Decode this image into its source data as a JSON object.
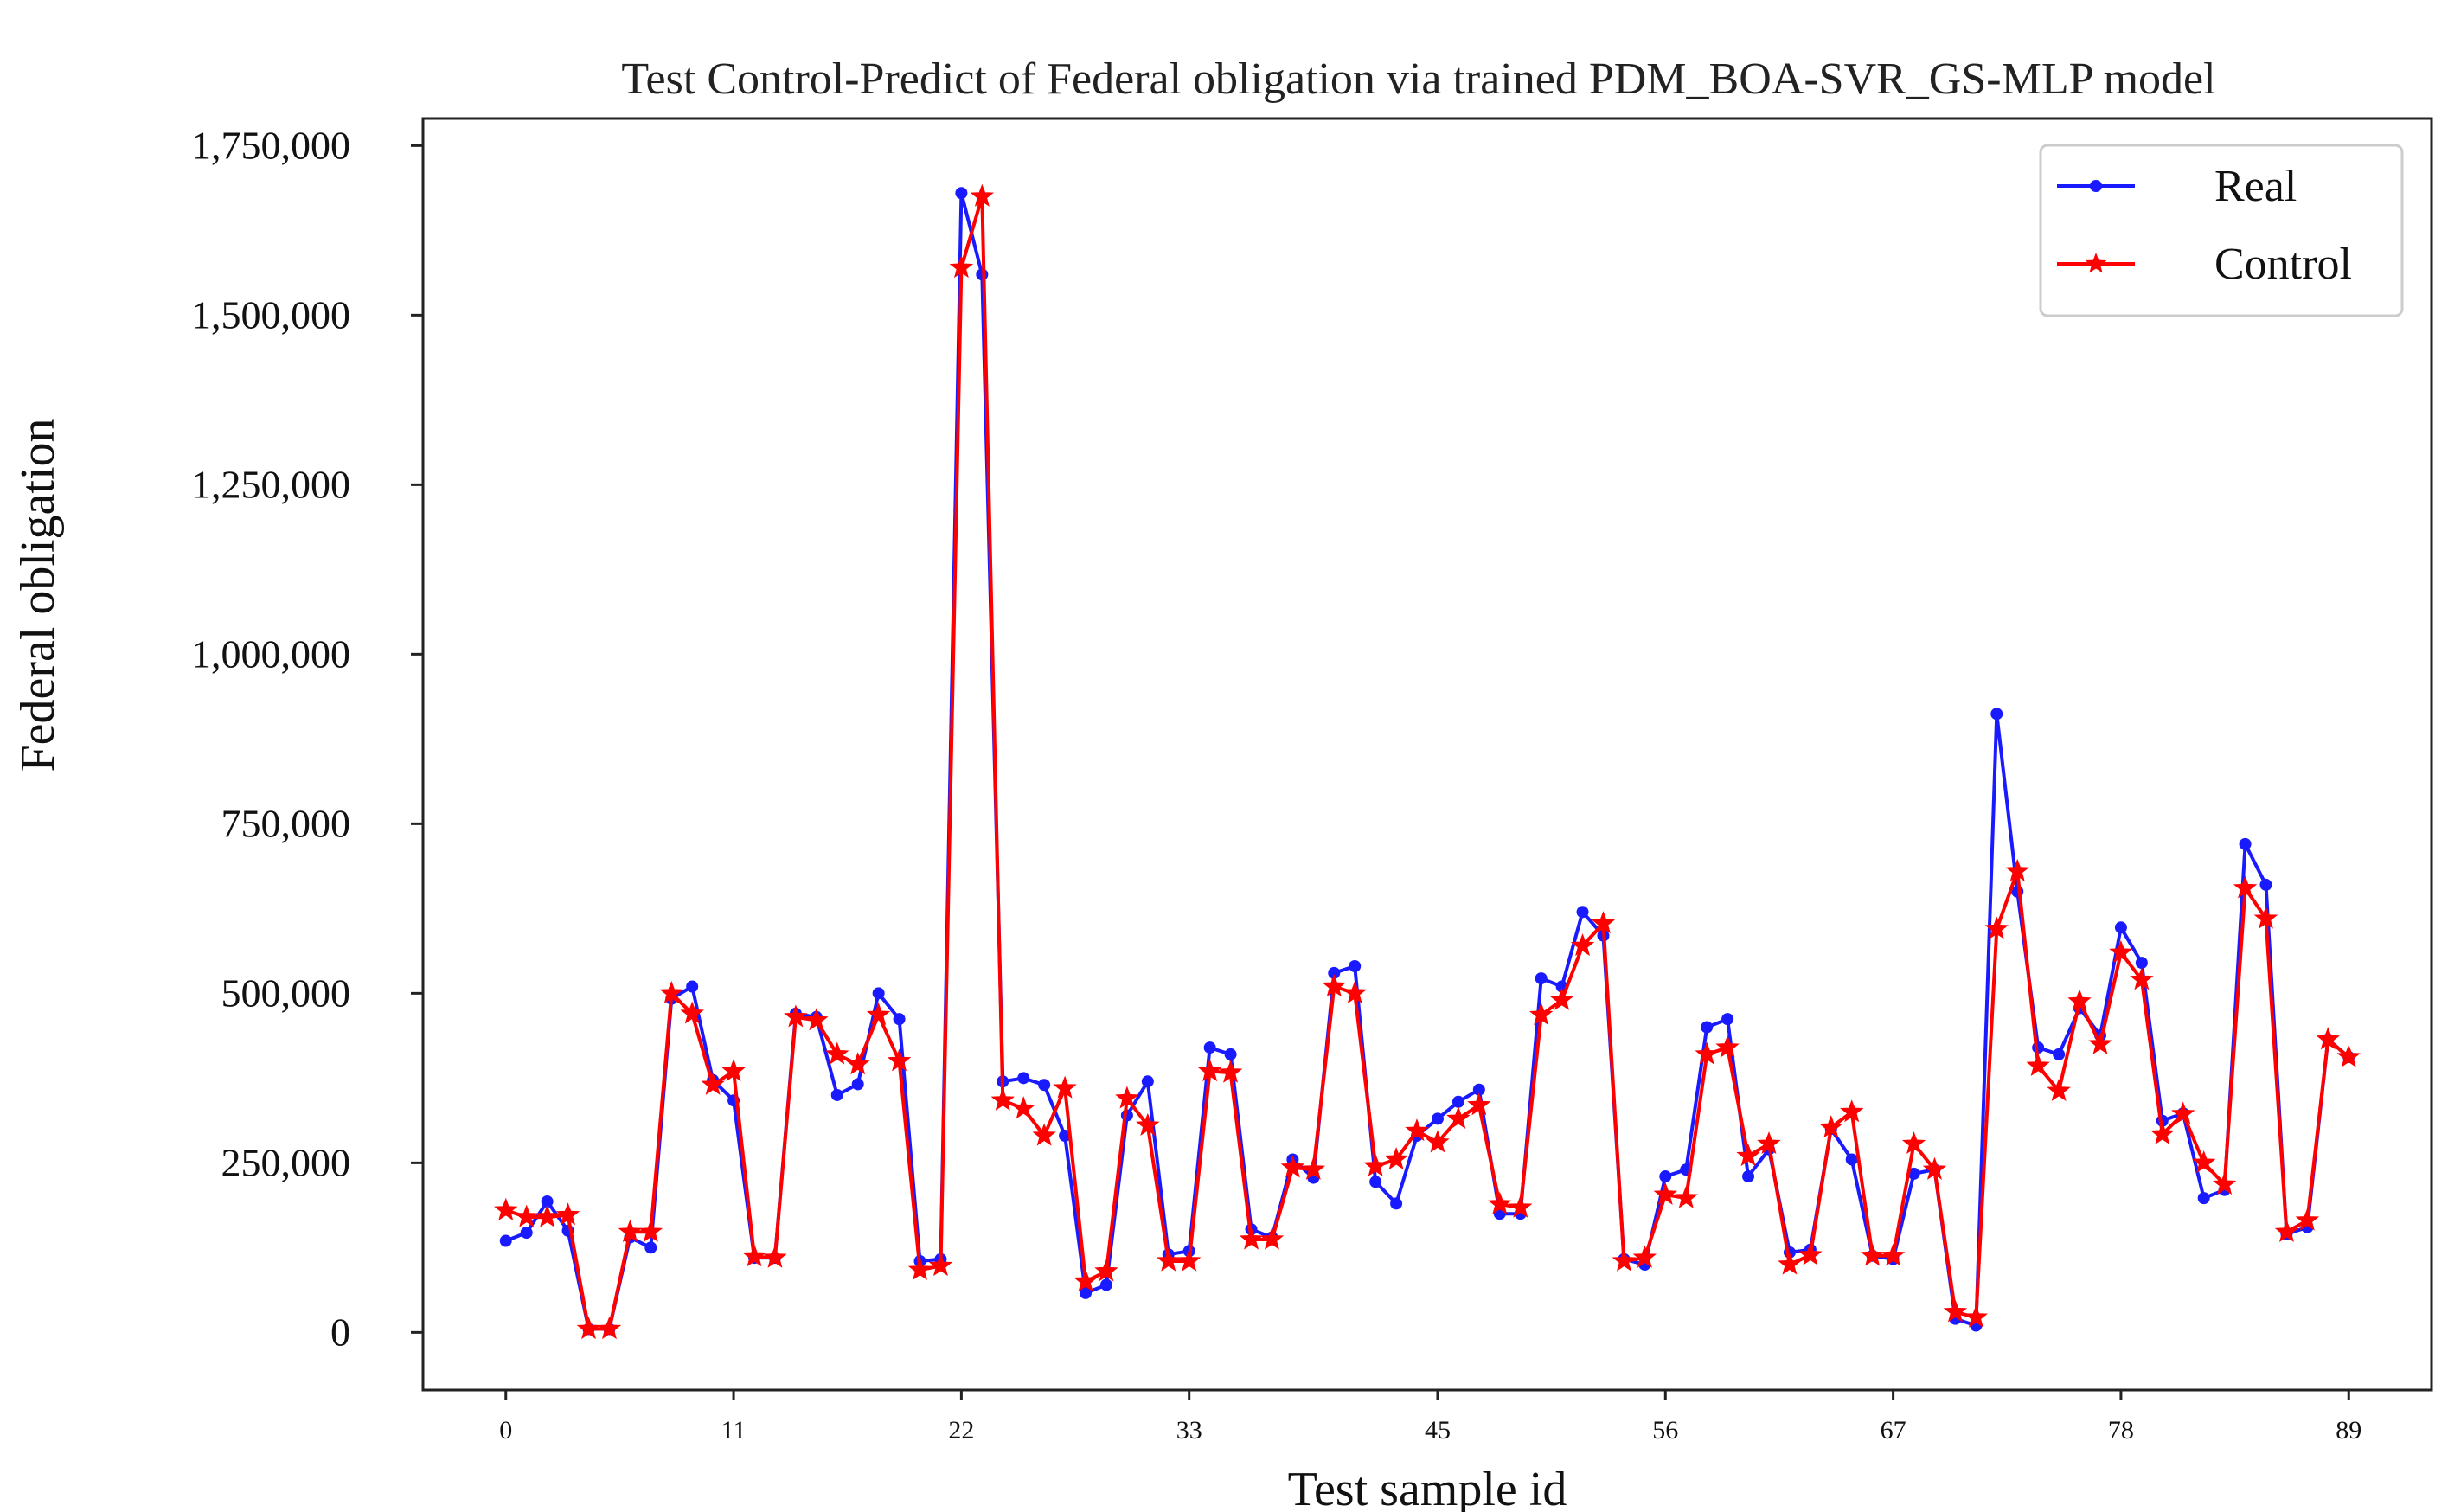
{
  "chart_data": {
    "type": "line",
    "title": "Test Control-Predict of Federal obligation via trained PDM_BOA-SVR_GS-MLP model",
    "xlabel": "Test sample id",
    "ylabel": "Federal obligation",
    "xlim": [
      -4,
      93
    ],
    "ylim": [
      -85000,
      1790000
    ],
    "xticks": [
      0,
      11,
      22,
      33,
      45,
      56,
      67,
      78,
      89
    ],
    "yticks": [
      {
        "value": 0,
        "label": "0"
      },
      {
        "value": 250000,
        "label": "250,000"
      },
      {
        "value": 500000,
        "label": "500,000"
      },
      {
        "value": 750000,
        "label": "750,000"
      },
      {
        "value": 1000000,
        "label": "1,000,000"
      },
      {
        "value": 1250000,
        "label": "1,250,000"
      },
      {
        "value": 1500000,
        "label": "1,500,000"
      },
      {
        "value": 1750000,
        "label": "1,750,000"
      }
    ],
    "legend": "top-right",
    "series": [
      {
        "name": "Real",
        "color": "#1a1aff",
        "marker": "circle",
        "values": [
          135000,
          147000,
          193000,
          150000,
          5000,
          5000,
          140000,
          125000,
          492000,
          510000,
          372000,
          342000,
          110000,
          110000,
          470000,
          465000,
          350000,
          366000,
          500000,
          462000,
          105000,
          108000,
          1680000,
          1560000,
          370000,
          375000,
          365000,
          290000,
          58000,
          70000,
          320000,
          370000,
          115000,
          120000,
          420000,
          410000,
          152000,
          140000,
          255000,
          228000,
          530000,
          540000,
          222000,
          190000,
          290000,
          315000,
          340000,
          358000,
          175000,
          175000,
          522000,
          510000,
          620000,
          585000,
          108000,
          100000,
          230000,
          240000,
          450000,
          462000,
          230000,
          270000,
          118000,
          122000,
          300000,
          255000,
          113000,
          108000,
          234000,
          240000,
          20000,
          10000,
          912000,
          650000,
          420000,
          410000,
          478000,
          438000,
          597000,
          545000,
          312000,
          323000,
          198000,
          210000,
          720000,
          660000,
          145000,
          155000,
          432000,
          406000
        ]
      },
      {
        "name": "Control",
        "color": "#ff0000",
        "marker": "star",
        "values": [
          180000,
          170000,
          170000,
          173000,
          5000,
          5000,
          148000,
          148000,
          500000,
          470000,
          365000,
          385000,
          112000,
          110000,
          465000,
          460000,
          410000,
          395000,
          468000,
          400000,
          92000,
          98000,
          1570000,
          1675000,
          342000,
          330000,
          290000,
          360000,
          75000,
          90000,
          345000,
          305000,
          105000,
          105000,
          385000,
          383000,
          137000,
          137000,
          243000,
          240000,
          510000,
          500000,
          245000,
          255000,
          297000,
          280000,
          315000,
          335000,
          189000,
          184000,
          468000,
          490000,
          570000,
          603000,
          105000,
          110000,
          203000,
          198000,
          410000,
          420000,
          260000,
          278000,
          100000,
          114000,
          302000,
          325000,
          113000,
          113000,
          278000,
          240000,
          30000,
          22000,
          595000,
          680000,
          393000,
          356000,
          488000,
          425000,
          560000,
          520000,
          292000,
          322000,
          250000,
          218000,
          655000,
          610000,
          148000,
          165000,
          432000,
          406000
        ]
      }
    ]
  }
}
